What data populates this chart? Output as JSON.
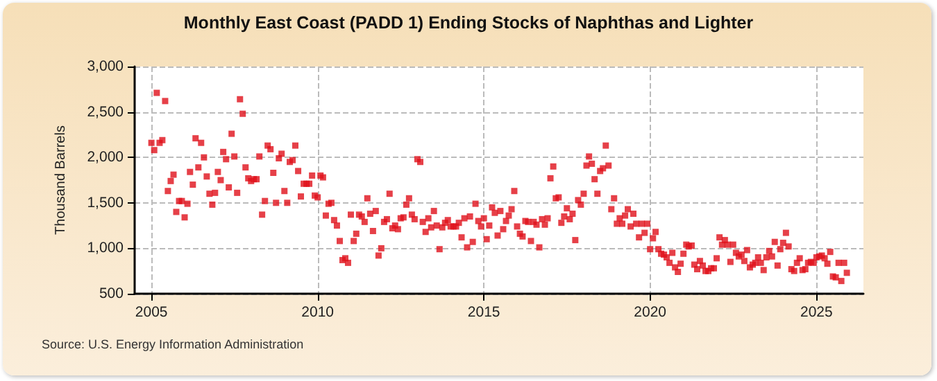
{
  "chart_data": {
    "type": "scatter",
    "title": "Monthly East Coast (PADD 1) Ending Stocks of Naphthas and Lighter",
    "ylabel": "Thousand Barrels",
    "annotations": [
      "Source: U.S. Energy Information Administration"
    ],
    "x": [
      "2005-01",
      "2005-02",
      "2005-03",
      "2005-04",
      "2005-05",
      "2005-06",
      "2005-07",
      "2005-08",
      "2005-09",
      "2005-10",
      "2005-11",
      "2005-12",
      "2006-01",
      "2006-02",
      "2006-03",
      "2006-04",
      "2006-05",
      "2006-06",
      "2006-07",
      "2006-08",
      "2006-09",
      "2006-10",
      "2006-11",
      "2006-12",
      "2007-01",
      "2007-02",
      "2007-03",
      "2007-04",
      "2007-05",
      "2007-06",
      "2007-07",
      "2007-08",
      "2007-09",
      "2007-10",
      "2007-11",
      "2007-12",
      "2008-01",
      "2008-02",
      "2008-03",
      "2008-04",
      "2008-05",
      "2008-06",
      "2008-07",
      "2008-08",
      "2008-09",
      "2008-10",
      "2008-11",
      "2008-12",
      "2009-01",
      "2009-02",
      "2009-03",
      "2009-04",
      "2009-05",
      "2009-06",
      "2009-07",
      "2009-08",
      "2009-09",
      "2009-10",
      "2009-11",
      "2009-12",
      "2010-01",
      "2010-02",
      "2010-03",
      "2010-04",
      "2010-05",
      "2010-06",
      "2010-07",
      "2010-08",
      "2010-09",
      "2010-10",
      "2010-11",
      "2010-12",
      "2011-01",
      "2011-02",
      "2011-03",
      "2011-04",
      "2011-05",
      "2011-06",
      "2011-07",
      "2011-08",
      "2011-09",
      "2011-10",
      "2011-11",
      "2011-12",
      "2012-01",
      "2012-02",
      "2012-03",
      "2012-04",
      "2012-05",
      "2012-06",
      "2012-07",
      "2012-08",
      "2012-09",
      "2012-10",
      "2012-11",
      "2012-12",
      "2013-01",
      "2013-02",
      "2013-03",
      "2013-04",
      "2013-05",
      "2013-06",
      "2013-07",
      "2013-08",
      "2013-09",
      "2013-10",
      "2013-11",
      "2013-12",
      "2014-01",
      "2014-02",
      "2014-03",
      "2014-04",
      "2014-05",
      "2014-06",
      "2014-07",
      "2014-08",
      "2014-09",
      "2014-10",
      "2014-11",
      "2014-12",
      "2015-01",
      "2015-02",
      "2015-03",
      "2015-04",
      "2015-05",
      "2015-06",
      "2015-07",
      "2015-08",
      "2015-09",
      "2015-10",
      "2015-11",
      "2015-12",
      "2016-01",
      "2016-02",
      "2016-03",
      "2016-04",
      "2016-05",
      "2016-06",
      "2016-07",
      "2016-08",
      "2016-09",
      "2016-10",
      "2016-11",
      "2016-12",
      "2017-01",
      "2017-02",
      "2017-03",
      "2017-04",
      "2017-05",
      "2017-06",
      "2017-07",
      "2017-08",
      "2017-09",
      "2017-10",
      "2017-11",
      "2017-12",
      "2018-01",
      "2018-02",
      "2018-03",
      "2018-04",
      "2018-05",
      "2018-06",
      "2018-07",
      "2018-08",
      "2018-09",
      "2018-10",
      "2018-11",
      "2018-12",
      "2019-01",
      "2019-02",
      "2019-03",
      "2019-04",
      "2019-05",
      "2019-06",
      "2019-07",
      "2019-08",
      "2019-09",
      "2019-10",
      "2019-11",
      "2019-12",
      "2020-01",
      "2020-02",
      "2020-03",
      "2020-04",
      "2020-05",
      "2020-06",
      "2020-07",
      "2020-08",
      "2020-09",
      "2020-10",
      "2020-11",
      "2020-12",
      "2021-01",
      "2021-02",
      "2021-03",
      "2021-04",
      "2021-05",
      "2021-06",
      "2021-07",
      "2021-08",
      "2021-09",
      "2021-10",
      "2021-11",
      "2021-12",
      "2022-01",
      "2022-02",
      "2022-03",
      "2022-04",
      "2022-05",
      "2022-06",
      "2022-07",
      "2022-08",
      "2022-09",
      "2022-10",
      "2022-11",
      "2022-12",
      "2023-01",
      "2023-02",
      "2023-03",
      "2023-04",
      "2023-05",
      "2023-06",
      "2023-07",
      "2023-08",
      "2023-09",
      "2023-10",
      "2023-11",
      "2023-12",
      "2024-01",
      "2024-02",
      "2024-03",
      "2024-04",
      "2024-05",
      "2024-06",
      "2024-07",
      "2024-08",
      "2024-09",
      "2024-10",
      "2024-11",
      "2024-12",
      "2025-01",
      "2025-02",
      "2025-03",
      "2025-04",
      "2025-05",
      "2025-06",
      "2025-07",
      "2025-08",
      "2025-09",
      "2025-10",
      "2025-11",
      "2025-12"
    ],
    "series": [
      {
        "color": "#e0101a",
        "values": [
          2160,
          2080,
          2710,
          2160,
          2190,
          2620,
          1630,
          1740,
          1810,
          1400,
          1520,
          1520,
          1340,
          1490,
          1840,
          1700,
          2210,
          1890,
          2160,
          2000,
          1790,
          1600,
          1480,
          1610,
          1840,
          1750,
          2060,
          1980,
          1670,
          2260,
          2010,
          1610,
          2640,
          2480,
          1890,
          1770,
          1740,
          1760,
          1760,
          2010,
          1370,
          1520,
          2130,
          2090,
          1830,
          1500,
          1990,
          2040,
          1630,
          1500,
          1950,
          1970,
          2130,
          1850,
          1570,
          1710,
          1710,
          1710,
          1800,
          1580,
          1560,
          1800,
          1780,
          1360,
          1490,
          1500,
          1310,
          1250,
          1080,
          870,
          890,
          840,
          1370,
          1080,
          1160,
          1370,
          1350,
          1290,
          1550,
          1380,
          1190,
          1410,
          920,
          1000,
          1290,
          1320,
          1600,
          1220,
          1250,
          1210,
          1330,
          1340,
          1480,
          1550,
          1370,
          1320,
          1980,
          1950,
          1290,
          1180,
          1330,
          1230,
          1410,
          1250,
          990,
          1230,
          1280,
          1310,
          1240,
          1240,
          1240,
          1280,
          1120,
          1330,
          1010,
          1350,
          1070,
          1490,
          1300,
          1240,
          1330,
          1100,
          1250,
          1450,
          1390,
          1140,
          1410,
          1210,
          1300,
          1360,
          1430,
          1630,
          1240,
          1160,
          1130,
          1300,
          1290,
          1080,
          1290,
          1260,
          1010,
          1320,
          1260,
          1330,
          1770,
          1900,
          1550,
          1560,
          1280,
          1350,
          1440,
          1320,
          1380,
          1090,
          1530,
          1480,
          1600,
          1910,
          2010,
          1930,
          1760,
          1600,
          1850,
          1880,
          2130,
          1910,
          1430,
          1550,
          1270,
          1330,
          1270,
          1360,
          1430,
          1240,
          1380,
          1270,
          1120,
          1270,
          1170,
          1270,
          990,
          1110,
          1180,
          990,
          940,
          930,
          900,
          840,
          950,
          790,
          740,
          830,
          940,
          1040,
          1020,
          1030,
          820,
          770,
          860,
          810,
          750,
          750,
          780,
          780,
          890,
          1120,
          1040,
          1090,
          1040,
          850,
          1040,
          950,
          910,
          930,
          860,
          980,
          790,
          820,
          840,
          900,
          840,
          760,
          900,
          970,
          910,
          1070,
          810,
          990,
          1060,
          1170,
          1020,
          770,
          750,
          840,
          890,
          760,
          770,
          840,
          850,
          840,
          900,
          910,
          920,
          890,
          830,
          960,
          690,
          680,
          840,
          640,
          840,
          730
        ]
      }
    ],
    "xlim": [
      "2004-07",
      "2026-06"
    ],
    "xticks": [
      "2005",
      "2010",
      "2015",
      "2020",
      "2025"
    ],
    "ylim": [
      500,
      3000
    ],
    "yticks": [
      500,
      {
        "value": 1000,
        "label": "1,000"
      },
      {
        "value": 1500,
        "label": "1,500"
      },
      {
        "value": 2000,
        "label": "2,000"
      },
      {
        "value": 2500,
        "label": "2,500"
      },
      {
        "value": 3000,
        "label": "3,000"
      }
    ],
    "grid": true,
    "marker": "square"
  }
}
